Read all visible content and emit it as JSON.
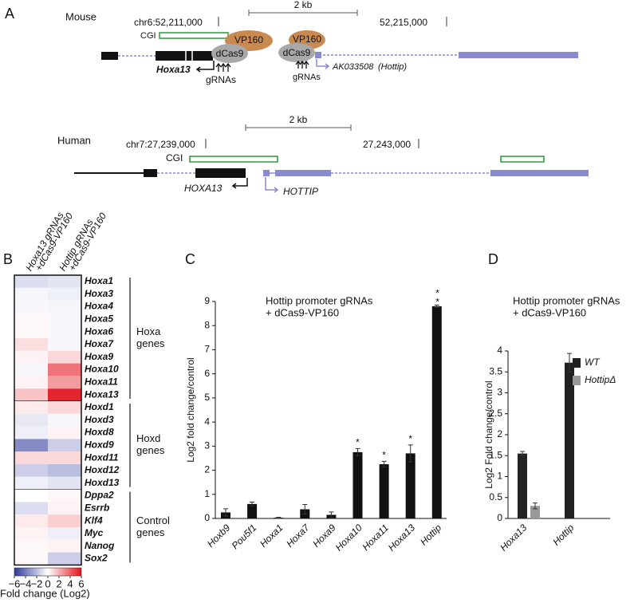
{
  "panel_labels": [
    "A",
    "B",
    "C",
    "D"
  ],
  "diagram": {
    "mouse": {
      "species": "Mouse",
      "left_coord": "chr6:52,211,000",
      "right_coord": "52,215,000",
      "scale": "2 kb",
      "cgi": "CGI",
      "activator": "VP160",
      "dcas9": "dCas9",
      "guides": "gRNAs",
      "gene_left": "Hoxa13",
      "gene_right": "AK033508",
      "gene_right_alias": "(Hottip)"
    },
    "human": {
      "species": "Human",
      "left_coord": "chr7:27,239,000",
      "right_coord": "27,243,000",
      "scale": "2 kb",
      "cgi": "CGI",
      "gene_left": "HOXA13",
      "gene_right": "HOTTIP"
    }
  },
  "heatmap": {
    "columns": [
      [
        "Hoxa13 gRNAs",
        "+dCas9-VP160"
      ],
      [
        "Hottip gRNAs",
        "+dCas9-VP160"
      ]
    ],
    "colors": [
      "#2e3a9c",
      "#ffffff",
      "#e3111a"
    ],
    "groups": [
      {
        "label": [
          "Hoxa",
          "genes"
        ],
        "rows": [
          "Hoxa1",
          "Hoxa3",
          "Hoxa4",
          "Hoxa5",
          "Hoxa6",
          "Hoxa7",
          "Hoxa9",
          "Hoxa10",
          "Hoxa11",
          "Hoxa13"
        ],
        "values": [
          [
            -1,
            -0.8
          ],
          [
            -0.3,
            -0.5
          ],
          [
            -0.2,
            -0.3
          ],
          [
            0.2,
            -0.2
          ],
          [
            0.2,
            -0.2
          ],
          [
            0.8,
            -0.2
          ],
          [
            0.3,
            1
          ],
          [
            -0.3,
            3.5
          ],
          [
            0.3,
            2.5
          ],
          [
            1.5,
            5.5
          ]
        ]
      },
      {
        "label": [
          "Hoxd",
          "genes"
        ],
        "rows": [
          "Hoxd1",
          "Hoxd3",
          "Hoxd8",
          "Hoxd9",
          "Hoxd11",
          "Hoxd12",
          "Hoxd13"
        ],
        "values": [
          [
            0.5,
            1
          ],
          [
            -0.7,
            -0.3
          ],
          [
            -0.5,
            0.3
          ],
          [
            -3.5,
            -1.5
          ],
          [
            1,
            1
          ],
          [
            -1.5,
            -2
          ],
          [
            -0.5,
            -0.8
          ]
        ]
      },
      {
        "label": [
          "Control",
          "genes"
        ],
        "rows": [
          "Dppa2",
          "Esrrb",
          "Klf4",
          "Myc",
          "Nanog",
          "Sox2"
        ],
        "values": [
          [
            0,
            0.2
          ],
          [
            -1,
            0.3
          ],
          [
            0.5,
            1.2
          ],
          [
            0.3,
            -0.5
          ],
          [
            0.2,
            0.3
          ],
          [
            0.2,
            -1.5
          ]
        ]
      }
    ],
    "colorbar": {
      "range": [
        -6,
        6
      ],
      "ticks": [
        {
          "value": -6,
          "label": "−6"
        },
        {
          "value": -4,
          "label": "−4"
        },
        {
          "value": -2,
          "label": "−2"
        },
        0,
        2,
        4,
        6
      ],
      "label": "Fold change (Log2)"
    }
  },
  "chart_data": [
    {
      "type": "bar",
      "title": [
        "Hottip promoter gRNAs",
        "+ dCas9-VP160"
      ],
      "ylabel": "Log2 fold change/control",
      "categories": [
        "Hoxb9",
        "Pou5f1",
        "Hoxa1",
        "Hoxa7",
        "Hoxa9",
        "Hoxa10",
        "Hoxa11",
        "Hoxa13",
        "Hottip"
      ],
      "values": [
        0.25,
        0.6,
        0.03,
        0.38,
        0.15,
        2.75,
        2.25,
        2.7,
        8.8
      ],
      "errors": [
        0.15,
        0.08,
        0.02,
        0.2,
        0.12,
        0.15,
        0.12,
        0.35,
        0.05
      ],
      "significance": [
        null,
        null,
        null,
        null,
        null,
        "*",
        "*",
        "*",
        "**"
      ],
      "color": "#111111",
      "ylim": [
        0,
        9
      ],
      "yticks": [
        0,
        1,
        2,
        3,
        4,
        5,
        6,
        7,
        8,
        9
      ]
    },
    {
      "type": "grouped_bar",
      "title": [
        "Hottip promoter gRNAs",
        "+ dCas9-VP160"
      ],
      "ylabel": "Log2 Fold change/control",
      "categories": [
        "Hoxa13",
        "Hottip"
      ],
      "series": [
        {
          "name": "WT",
          "color": "#222222",
          "values": [
            1.55,
            3.72
          ],
          "errors": [
            0.05,
            0.22
          ]
        },
        {
          "name": "HottipΔ",
          "color": "#999999",
          "values": [
            0.3,
            null
          ],
          "errors": [
            0.07,
            null
          ]
        }
      ],
      "ylim": [
        0,
        4
      ],
      "yticks": [
        0,
        0.5,
        1,
        1.5,
        2,
        2.5,
        3,
        3.5,
        4
      ],
      "legend": "upper right"
    }
  ]
}
